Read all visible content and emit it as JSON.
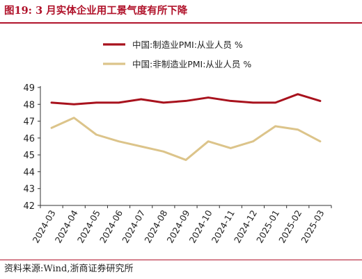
{
  "figure": {
    "title": "图19:  3 月实体企业用工景气度有所下降",
    "source": "资料来源:Wind,浙商证券研究所"
  },
  "colors": {
    "brand": "#b0122a",
    "series1": "#a8121d",
    "series2": "#dcc48a",
    "axis": "#333333"
  },
  "chart_data": {
    "type": "line",
    "title": "",
    "xlabel": "",
    "ylabel": "",
    "x": [
      "2024-03",
      "2024-04",
      "2024-05",
      "2024-06",
      "2024-07",
      "2024-08",
      "2024-09",
      "2024-10",
      "2024-11",
      "2024-12",
      "2025-01",
      "2025-02",
      "2025-03"
    ],
    "ylim": [
      42,
      49
    ],
    "yticks": [
      "42",
      "43",
      "44",
      "45",
      "46",
      "47",
      "48",
      "49"
    ],
    "grid": false,
    "legend_position": "top",
    "series": [
      {
        "name": "中国:制造业PMI:从业人员  %",
        "values": [
          48.1,
          48.0,
          48.1,
          48.1,
          48.3,
          48.1,
          48.2,
          48.4,
          48.2,
          48.1,
          48.1,
          48.6,
          48.2
        ]
      },
      {
        "name": "中国:非制造业PMI:从业人员  %",
        "values": [
          46.6,
          47.2,
          46.2,
          45.8,
          45.5,
          45.2,
          44.7,
          45.8,
          45.4,
          45.8,
          46.7,
          46.5,
          45.8
        ]
      }
    ]
  }
}
